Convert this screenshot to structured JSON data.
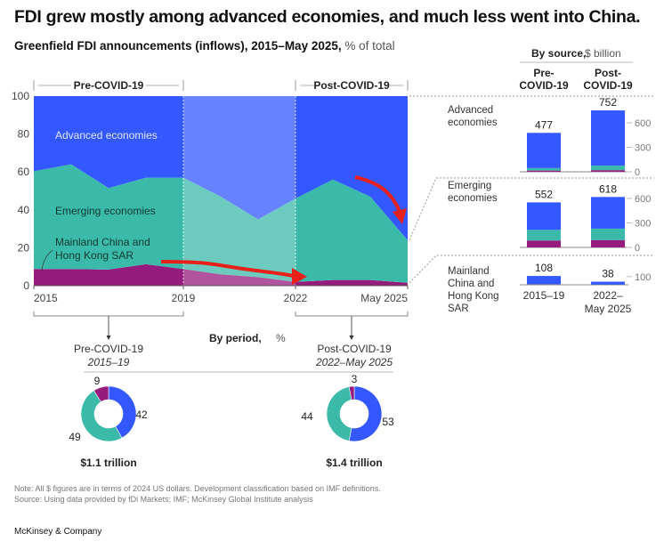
{
  "title": "FDI grew mostly among advanced economies, and much less went into China.",
  "subtitle": {
    "bold": "Greenfield FDI announcements (inflows), 2015–May 2025,",
    "unit": "% of total"
  },
  "colors": {
    "advanced": "#3358ff",
    "emerging": "#3bbaa9",
    "china": "#951b7d",
    "arrow": "#e8201b"
  },
  "periods": {
    "pre": "Pre-COVID-19",
    "post": "Post-COVID-19"
  },
  "chart_data": [
    {
      "type": "area",
      "title": "Greenfield FDI announcements (inflows), 2015–May 2025, % of total",
      "x": [
        "2015",
        "2016",
        "2017",
        "2018",
        "2019",
        "2020",
        "2021",
        "2022",
        "2023",
        "2024",
        "May 2025"
      ],
      "xticks": [
        "2015",
        "2019",
        "2022",
        "May 2025"
      ],
      "yticks": [
        "0",
        "20",
        "40",
        "60",
        "80",
        "100"
      ],
      "ylim": [
        0,
        100
      ],
      "stacked": true,
      "series": [
        {
          "name": "Mainland China and Hong Kong SAR",
          "label": "Mainland China and Hong Kong SAR",
          "values": [
            8.8,
            8.8,
            8.5,
            11.3,
            8.8,
            6,
            4.5,
            2,
            3,
            3,
            1.5
          ]
        },
        {
          "name": "Emerging economies",
          "label": "Emerging economies",
          "values": [
            51.6,
            55.2,
            43,
            45.7,
            48.2,
            41,
            30.5,
            44,
            53,
            44,
            22.5
          ]
        },
        {
          "name": "Advanced economies",
          "label": "Advanced economies",
          "values": [
            39.6,
            36,
            48.5,
            43,
            43,
            53,
            65,
            54,
            44,
            53,
            76
          ]
        }
      ]
    },
    {
      "type": "bar",
      "title": "By source,",
      "unit": "$ billion",
      "columns": [
        "Pre-\nCOVID-19",
        "Post-\nCOVID-19"
      ],
      "column_labels": [
        "Pre-",
        "COVID-19",
        "Post-",
        "COVID-19"
      ],
      "xlabels": [
        "2015–19",
        "2022–",
        "May 2025"
      ],
      "stacked": true,
      "rows": [
        {
          "name": "Advanced economies",
          "label": [
            "Advanced",
            "economies"
          ],
          "totals": [
            477,
            752
          ],
          "totals_label": [
            "477",
            "752"
          ],
          "segments": {
            "china": [
              15,
              20
            ],
            "emerging": [
              30,
              55
            ],
            "advanced": [
              432,
              677
            ]
          },
          "ticks": [
            "0",
            "300",
            "600"
          ],
          "tick_values": [
            0,
            300,
            600
          ]
        },
        {
          "name": "Emerging economies",
          "label": [
            "Emerging",
            "economies"
          ],
          "totals": [
            552,
            618
          ],
          "totals_label": [
            "552",
            "618"
          ],
          "segments": {
            "china": [
              85,
              90
            ],
            "emerging": [
              130,
              140
            ],
            "advanced": [
              337,
              388
            ]
          },
          "ticks": [
            "0",
            "300",
            "600"
          ],
          "tick_values": [
            0,
            300,
            600
          ]
        },
        {
          "name": "Mainland China and Hong Kong SAR",
          "label": [
            "Mainland",
            "China and",
            "Hong Kong",
            "SAR"
          ],
          "totals": [
            108,
            38
          ],
          "totals_label": [
            "108",
            "38"
          ],
          "segments": {
            "china": [
              4,
              1
            ],
            "emerging": [
              4,
              2
            ],
            "advanced": [
              100,
              35
            ]
          },
          "ticks": [
            "100"
          ],
          "tick_values": [
            100
          ]
        }
      ]
    },
    {
      "type": "pie",
      "title": "By period,",
      "unit": "%",
      "donuts": [
        {
          "name": "Pre-COVID-19",
          "range": "2015–19",
          "total": "$1.1 trillion",
          "values": {
            "advanced": 42,
            "emerging": 49,
            "china": 9
          },
          "labels": [
            "42",
            "49",
            "9"
          ]
        },
        {
          "name": "Post-COVID-19",
          "range": "2022–May 2025",
          "total": "$1.4 trillion",
          "values": {
            "advanced": 53,
            "emerging": 44,
            "china": 3
          },
          "labels": [
            "53",
            "44",
            "3"
          ]
        }
      ]
    }
  ],
  "notes": {
    "note": "Note: All $ figures are in terms of 2024 US dollars. Development classification based on IMF definitions.",
    "source": "Source: Using data provided by fDi Markets; IMF; McKinsey Global Institute analysis"
  },
  "brand": "McKinsey & Company"
}
